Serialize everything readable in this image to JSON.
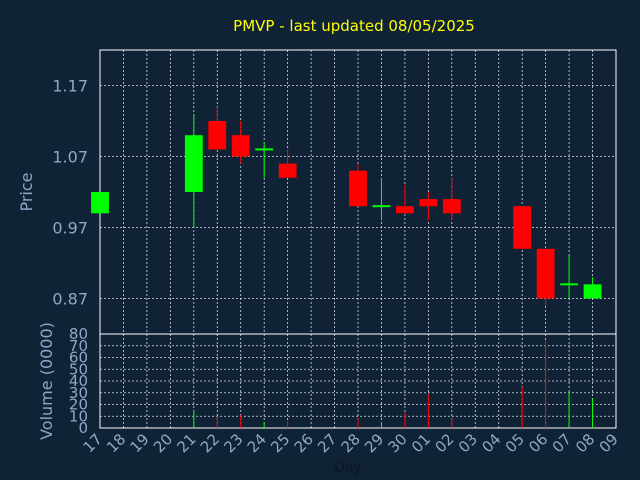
{
  "chart_data": {
    "type": "candlestick",
    "title": "PMVP - last updated 08/05/2025",
    "ylabel": "Price",
    "volume_label": "Volume (0000)",
    "xlabel": "Day",
    "colors": {
      "background": "#0f2236",
      "up": "#00ff00",
      "down": "#ff0000",
      "text": "#8fa8c8",
      "title": "#ffff00"
    },
    "grid": true,
    "price_ylim": [
      0.82,
      1.22
    ],
    "price_ticks": [
      "1.17",
      "1.07",
      "0.97",
      "0.87"
    ],
    "volume_ylim": [
      0,
      80
    ],
    "volume_ticks": [
      "80",
      "70",
      "60",
      "50",
      "40",
      "30",
      "20",
      "10",
      "0"
    ],
    "x_tick_labels": [
      "17",
      "18",
      "19",
      "20",
      "21",
      "22",
      "23",
      "24",
      "25",
      "26",
      "27",
      "28",
      "29",
      "30",
      "01",
      "02",
      "03",
      "04",
      "05",
      "06",
      "07",
      "08",
      "09"
    ],
    "candles": [
      {
        "day": "17",
        "open": 0.99,
        "high": 1.02,
        "low": 0.99,
        "close": 1.02,
        "volume": 0
      },
      {
        "day": "21",
        "open": 1.02,
        "high": 1.13,
        "low": 0.97,
        "close": 1.1,
        "volume": 15
      },
      {
        "day": "22",
        "open": 1.12,
        "high": 1.14,
        "low": 1.08,
        "close": 1.08,
        "volume": 10
      },
      {
        "day": "23",
        "open": 1.1,
        "high": 1.12,
        "low": 1.06,
        "close": 1.07,
        "volume": 11
      },
      {
        "day": "24",
        "open": 1.08,
        "high": 1.09,
        "low": 1.04,
        "close": 1.08,
        "volume": 5
      },
      {
        "day": "25",
        "open": 1.06,
        "high": 1.08,
        "low": 1.04,
        "close": 1.04,
        "volume": 6
      },
      {
        "day": "28",
        "open": 1.05,
        "high": 1.06,
        "low": 1.0,
        "close": 1.0,
        "volume": 8
      },
      {
        "day": "29",
        "open": 1.0,
        "high": 1.04,
        "low": 0.98,
        "close": 1.0,
        "volume": 5
      },
      {
        "day": "30",
        "open": 1.0,
        "high": 1.03,
        "low": 0.99,
        "close": 0.99,
        "volume": 13
      },
      {
        "day": "01",
        "open": 1.01,
        "high": 1.02,
        "low": 0.98,
        "close": 1.0,
        "volume": 29
      },
      {
        "day": "02",
        "open": 1.01,
        "high": 1.04,
        "low": 0.98,
        "close": 0.99,
        "volume": 8
      },
      {
        "day": "05",
        "open": 1.0,
        "high": 1.0,
        "low": 0.94,
        "close": 0.94,
        "volume": 35
      },
      {
        "day": "06",
        "open": 0.94,
        "high": 0.94,
        "low": 0.86,
        "close": 0.87,
        "volume": 75
      },
      {
        "day": "07",
        "open": 0.89,
        "high": 0.93,
        "low": 0.87,
        "close": 0.89,
        "volume": 31
      },
      {
        "day": "08",
        "open": 0.87,
        "high": 0.9,
        "low": 0.87,
        "close": 0.89,
        "volume": 25
      }
    ]
  }
}
